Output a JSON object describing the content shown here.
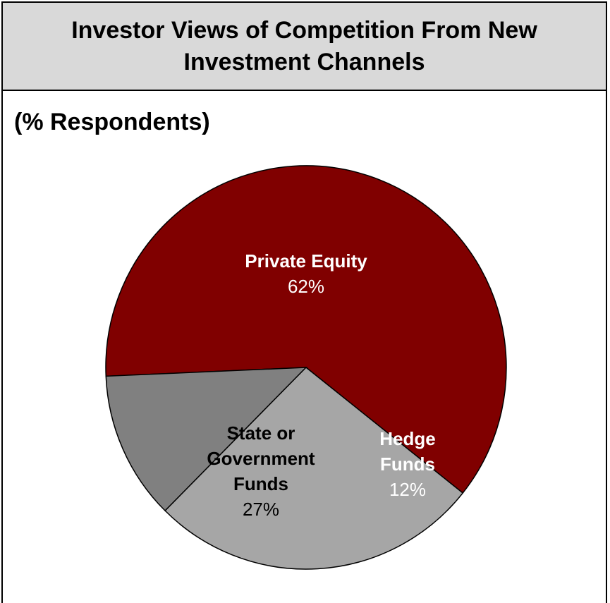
{
  "chart_data": {
    "type": "pie",
    "title": "Investor Views of Competition From New Investment Channels",
    "subtitle": "(% Respondents)",
    "slices": [
      {
        "name_lines": [
          "Private Equity"
        ],
        "value_label": "62%",
        "value": 62,
        "color": "#800000",
        "text_color": "#ffffff"
      },
      {
        "name_lines": [
          "Hedge",
          "Funds"
        ],
        "value_label": "12%",
        "value": 12,
        "color": "#808080",
        "text_color": "#ffffff"
      },
      {
        "name_lines": [
          "State or",
          "Government",
          "Funds"
        ],
        "value_label": "27%",
        "value": 27,
        "color": "#a6a6a6",
        "text_color": "#000000"
      }
    ]
  }
}
